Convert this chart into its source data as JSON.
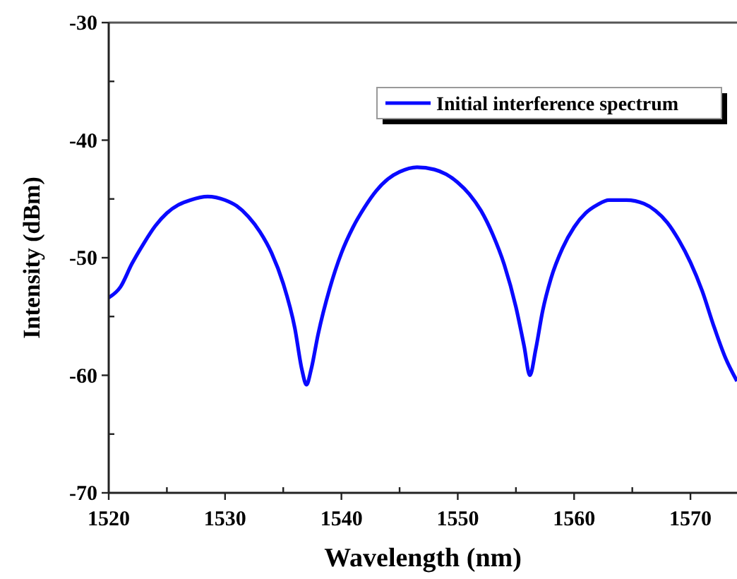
{
  "chart_data": {
    "type": "line",
    "xlabel": "Wavelength (nm)",
    "ylabel": "Intensity (dBm)",
    "xlim": [
      1520,
      1574
    ],
    "ylim": [
      -70,
      -30
    ],
    "xticks": [
      1520,
      {
        "value": 1525,
        "label": null
      },
      1530,
      {
        "value": 1535,
        "label": null
      },
      1540,
      {
        "value": 1545,
        "label": null
      },
      1550,
      {
        "value": 1555,
        "label": null
      },
      1560,
      {
        "value": 1565,
        "label": null
      },
      1570
    ],
    "yticks": [
      -70,
      {
        "value": -65,
        "label": null
      },
      -60,
      {
        "value": -55,
        "label": null
      },
      -50,
      {
        "value": -45,
        "label": null
      },
      -40,
      {
        "value": -35,
        "label": null
      },
      -30
    ],
    "grid": false,
    "legend": "top right",
    "marker": "none",
    "line_style": "solid",
    "series": [
      {
        "name": "Initial interference spectrum",
        "color": "#0a0aff",
        "x": [
          1520,
          1521,
          1522,
          1523,
          1524,
          1525,
          1526,
          1527,
          1528.5,
          1530,
          1531,
          1532,
          1533,
          1534,
          1535,
          1536,
          1536.6,
          1537,
          1537.4,
          1538,
          1539,
          1540,
          1541,
          1542,
          1543,
          1544,
          1545,
          1546.5,
          1548,
          1549,
          1550,
          1551,
          1552,
          1553,
          1554,
          1555,
          1555.7,
          1556.2,
          1556.7,
          1557.3,
          1558,
          1559,
          1560,
          1561,
          1562,
          1563,
          1564.5,
          1566,
          1567,
          1568,
          1569,
          1570,
          1571,
          1572,
          1573,
          1574
        ],
        "values": [
          -53.4,
          -52.5,
          -50.5,
          -48.8,
          -47.3,
          -46.2,
          -45.5,
          -45.1,
          -44.8,
          -45.1,
          -45.6,
          -46.5,
          -47.8,
          -49.6,
          -52.2,
          -56,
          -59.5,
          -60.8,
          -59.5,
          -56.5,
          -52.6,
          -49.6,
          -47.4,
          -45.7,
          -44.3,
          -43.3,
          -42.7,
          -42.3,
          -42.5,
          -42.9,
          -43.6,
          -44.6,
          -46.0,
          -48.0,
          -50.6,
          -54.2,
          -57.5,
          -60.0,
          -57.8,
          -54.5,
          -51.8,
          -49.2,
          -47.4,
          -46.2,
          -45.5,
          -45.1,
          -45.1,
          -45.4,
          -46.0,
          -47.0,
          -48.5,
          -50.4,
          -52.8,
          -55.8,
          -58.5,
          -60.5
        ]
      }
    ]
  }
}
